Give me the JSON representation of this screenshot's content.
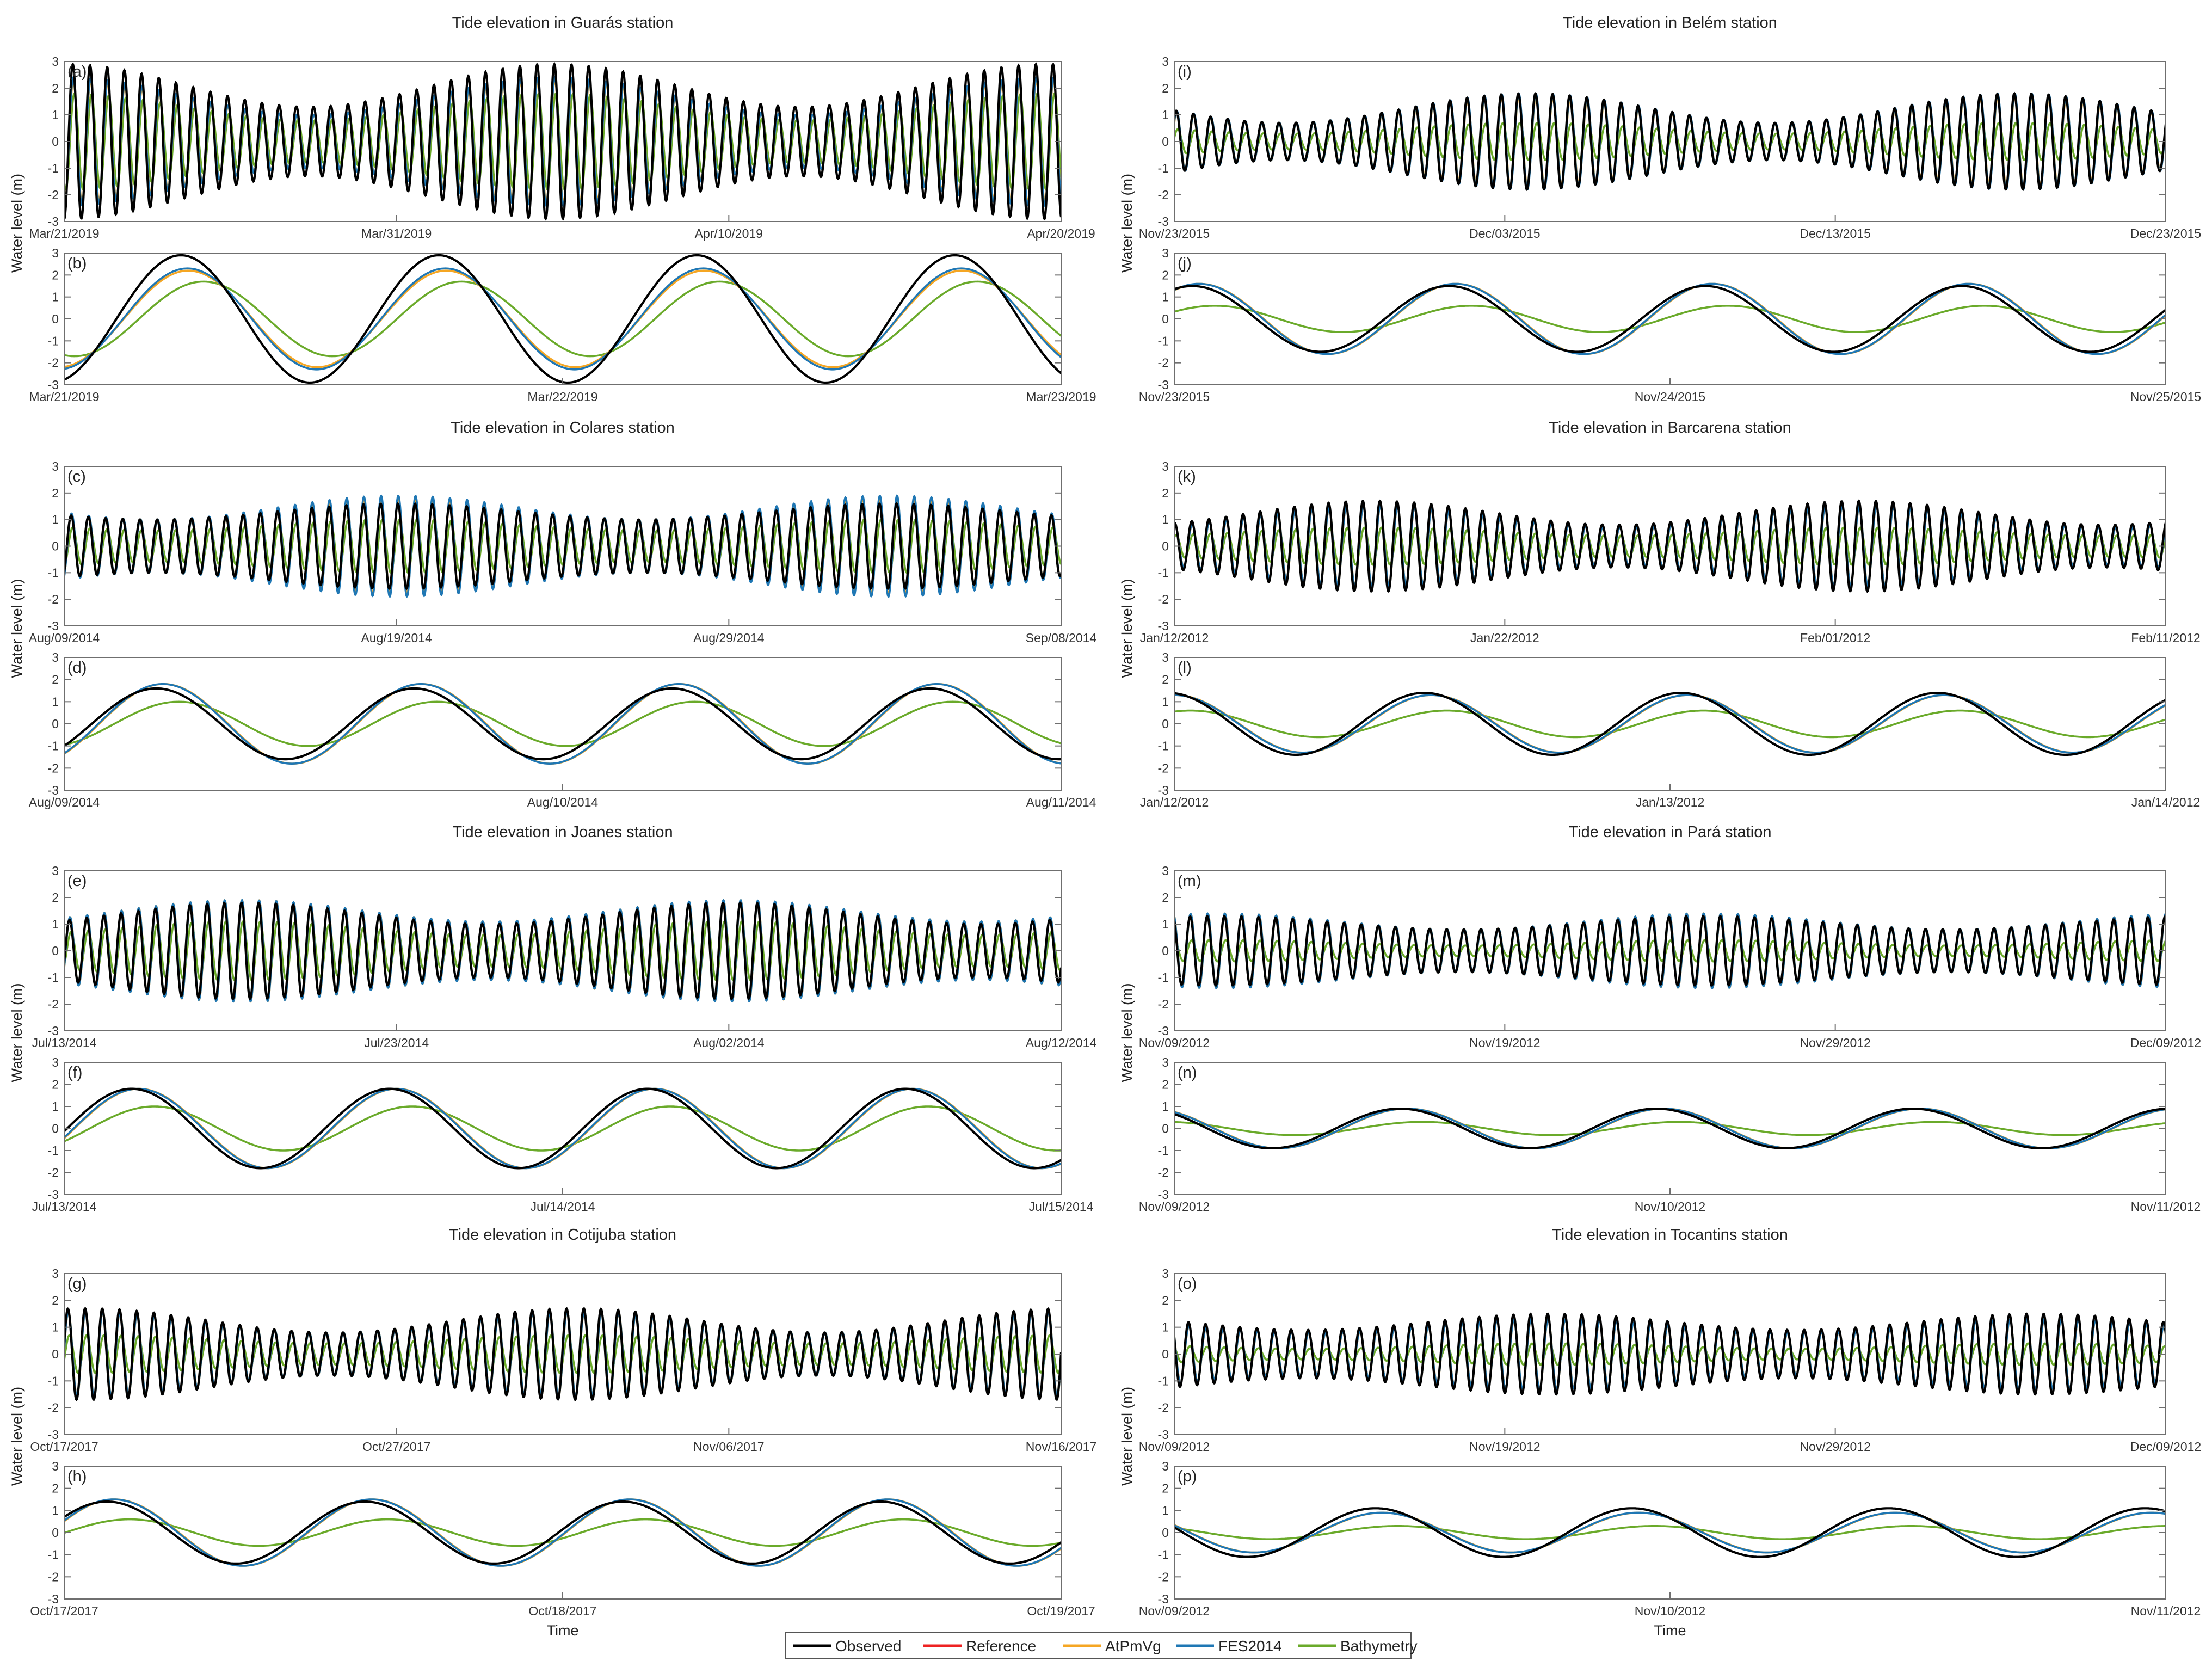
{
  "figure": {
    "xlabel": "Time",
    "ylabel": "Water level (m)"
  },
  "legend": {
    "items": [
      {
        "name": "Observed",
        "color": "#000000"
      },
      {
        "name": "Reference",
        "color": "#ee2222"
      },
      {
        "name": "AtPmVg",
        "color": "#f5a623"
      },
      {
        "name": "FES2014",
        "color": "#1f77b4"
      },
      {
        "name": "Bathymetry",
        "color": "#6aaa2a"
      }
    ]
  },
  "chart_data": [
    {
      "type": "line",
      "station": "Guarás",
      "title": "Tide elevation in Guarás station",
      "panel": "(a)",
      "ylim": [
        -3,
        3
      ],
      "yticks": [
        3,
        2,
        1,
        0,
        -1,
        -2,
        -3
      ],
      "xticks": [
        "Mar/21/2019",
        "Mar/31/2019",
        "Apr/10/2019",
        "Apr/20/2019"
      ],
      "days": 30,
      "series": [
        {
          "name": "Observed",
          "amplitude_range": [
            1.3,
            2.9
          ]
        },
        {
          "name": "FES2014",
          "amplitude_range": [
            1.0,
            2.4
          ]
        },
        {
          "name": "AtPmVg",
          "amplitude_range": [
            1.0,
            2.3
          ]
        },
        {
          "name": "Bathymetry",
          "amplitude_range": [
            0.8,
            1.8
          ]
        }
      ]
    },
    {
      "type": "line",
      "station": "Guarás",
      "panel": "(b)",
      "ylim": [
        -3,
        3
      ],
      "yticks": [
        3,
        2,
        1,
        0,
        -1,
        -2,
        -3
      ],
      "xticks": [
        "Mar/21/2019",
        "Mar/22/2019",
        "Mar/23/2019"
      ],
      "days": 2,
      "series": [
        {
          "name": "Observed",
          "amplitude": 2.9
        },
        {
          "name": "FES2014",
          "amplitude": 2.3
        },
        {
          "name": "AtPmVg",
          "amplitude": 2.2
        },
        {
          "name": "Bathymetry",
          "amplitude": 1.7
        }
      ]
    },
    {
      "type": "line",
      "station": "Colares",
      "title": "Tide elevation in Colares station",
      "panel": "(c)",
      "ylim": [
        -3,
        3
      ],
      "yticks": [
        3,
        2,
        1,
        0,
        -1,
        -2,
        -3
      ],
      "xticks": [
        "Aug/09/2014",
        "Aug/19/2014",
        "Aug/29/2014",
        "Sep/08/2014"
      ],
      "days": 30,
      "series": [
        {
          "name": "Observed",
          "amplitude_range": [
            1.0,
            1.6
          ]
        },
        {
          "name": "FES2014",
          "amplitude_range": [
            1.0,
            1.9
          ]
        },
        {
          "name": "AtPmVg",
          "amplitude_range": [
            1.0,
            1.8
          ]
        },
        {
          "name": "Bathymetry",
          "amplitude_range": [
            0.6,
            1.0
          ]
        }
      ]
    },
    {
      "type": "line",
      "station": "Colares",
      "panel": "(d)",
      "ylim": [
        -3,
        3
      ],
      "yticks": [
        3,
        2,
        1,
        0,
        -1,
        -2,
        -3
      ],
      "xticks": [
        "Aug/09/2014",
        "Aug/10/2014",
        "Aug/11/2014"
      ],
      "days": 2,
      "series": [
        {
          "name": "Observed",
          "amplitude": 1.6
        },
        {
          "name": "FES2014",
          "amplitude": 1.8
        },
        {
          "name": "AtPmVg",
          "amplitude": 1.8
        },
        {
          "name": "Bathymetry",
          "amplitude": 1.0
        }
      ]
    },
    {
      "type": "line",
      "station": "Joanes",
      "title": "Tide elevation in Joanes station",
      "panel": "(e)",
      "ylim": [
        -3,
        3
      ],
      "yticks": [
        3,
        2,
        1,
        0,
        -1,
        -2,
        -3
      ],
      "xticks": [
        "Jul/13/2014",
        "Jul/23/2014",
        "Aug/02/2014",
        "Aug/12/2014"
      ],
      "days": 30,
      "series": [
        {
          "name": "Observed",
          "amplitude_range": [
            1.0,
            1.8
          ]
        },
        {
          "name": "FES2014",
          "amplitude_range": [
            1.1,
            1.9
          ]
        },
        {
          "name": "AtPmVg",
          "amplitude_range": [
            1.1,
            1.9
          ]
        },
        {
          "name": "Bathymetry",
          "amplitude_range": [
            0.6,
            1.1
          ]
        }
      ]
    },
    {
      "type": "line",
      "station": "Joanes",
      "panel": "(f)",
      "ylim": [
        -3,
        3
      ],
      "yticks": [
        3,
        2,
        1,
        0,
        -1,
        -2,
        -3
      ],
      "xticks": [
        "Jul/13/2014",
        "Jul/14/2014",
        "Jul/15/2014"
      ],
      "days": 2,
      "series": [
        {
          "name": "Observed",
          "amplitude": 1.8
        },
        {
          "name": "FES2014",
          "amplitude": 1.8
        },
        {
          "name": "AtPmVg",
          "amplitude": 1.8
        },
        {
          "name": "Bathymetry",
          "amplitude": 1.0
        }
      ]
    },
    {
      "type": "line",
      "station": "Cotijuba",
      "title": "Tide elevation in Cotijuba station",
      "panel": "(g)",
      "ylim": [
        -3,
        3
      ],
      "yticks": [
        3,
        2,
        1,
        0,
        -1,
        -2,
        -3
      ],
      "xticks": [
        "Oct/17/2017",
        "Oct/27/2017",
        "Nov/06/2017",
        "Nov/16/2017"
      ],
      "days": 30,
      "series": [
        {
          "name": "Observed",
          "amplitude_range": [
            0.8,
            1.7
          ]
        },
        {
          "name": "FES2014",
          "amplitude_range": [
            0.8,
            1.6
          ]
        },
        {
          "name": "AtPmVg",
          "amplitude_range": [
            0.8,
            1.6
          ]
        },
        {
          "name": "Bathymetry",
          "amplitude_range": [
            0.4,
            0.7
          ]
        }
      ]
    },
    {
      "type": "line",
      "station": "Cotijuba",
      "panel": "(h)",
      "ylim": [
        -3,
        3
      ],
      "yticks": [
        3,
        2,
        1,
        0,
        -1,
        -2,
        -3
      ],
      "xticks": [
        "Oct/17/2017",
        "Oct/18/2017",
        "Oct/19/2017"
      ],
      "days": 2,
      "series": [
        {
          "name": "Observed",
          "amplitude": 1.4
        },
        {
          "name": "FES2014",
          "amplitude": 1.5
        },
        {
          "name": "AtPmVg",
          "amplitude": 1.5
        },
        {
          "name": "Bathymetry",
          "amplitude": 0.6
        }
      ]
    },
    {
      "type": "line",
      "station": "Belém",
      "title": "Tide elevation in Belém station",
      "panel": "(i)",
      "ylim": [
        -3,
        3
      ],
      "yticks": [
        3,
        2,
        1,
        0,
        -1,
        -2,
        -3
      ],
      "xticks": [
        "Nov/23/2015",
        "Dec/03/2015",
        "Dec/13/2015",
        "Dec/23/2015"
      ],
      "days": 30,
      "series": [
        {
          "name": "Observed",
          "amplitude_range": [
            0.7,
            1.8
          ]
        },
        {
          "name": "FES2014",
          "amplitude_range": [
            0.7,
            1.8
          ]
        },
        {
          "name": "AtPmVg",
          "amplitude_range": [
            0.7,
            1.7
          ]
        },
        {
          "name": "Bathymetry",
          "amplitude_range": [
            0.3,
            0.7
          ]
        }
      ]
    },
    {
      "type": "line",
      "station": "Belém",
      "panel": "(j)",
      "ylim": [
        -3,
        3
      ],
      "yticks": [
        3,
        2,
        1,
        0,
        -1,
        -2,
        -3
      ],
      "xticks": [
        "Nov/23/2015",
        "Nov/24/2015",
        "Nov/25/2015"
      ],
      "days": 2,
      "series": [
        {
          "name": "Observed",
          "amplitude": 1.5
        },
        {
          "name": "FES2014",
          "amplitude": 1.6
        },
        {
          "name": "AtPmVg",
          "amplitude": 1.6
        },
        {
          "name": "Bathymetry",
          "amplitude": 0.6
        }
      ]
    },
    {
      "type": "line",
      "station": "Barcarena",
      "title": "Tide elevation in Barcarena station",
      "panel": "(k)",
      "ylim": [
        -3,
        3
      ],
      "yticks": [
        3,
        2,
        1,
        0,
        -1,
        -2,
        -3
      ],
      "xticks": [
        "Jan/12/2012",
        "Jan/22/2012",
        "Feb/01/2012",
        "Feb/11/2012"
      ],
      "days": 30,
      "series": [
        {
          "name": "Observed",
          "amplitude_range": [
            0.8,
            1.7
          ]
        },
        {
          "name": "FES2014",
          "amplitude_range": [
            0.7,
            1.5
          ]
        },
        {
          "name": "AtPmVg",
          "amplitude_range": [
            0.7,
            1.5
          ]
        },
        {
          "name": "Bathymetry",
          "amplitude_range": [
            0.4,
            0.7
          ]
        }
      ]
    },
    {
      "type": "line",
      "station": "Barcarena",
      "panel": "(l)",
      "ylim": [
        -3,
        3
      ],
      "yticks": [
        3,
        2,
        1,
        0,
        -1,
        -2,
        -3
      ],
      "xticks": [
        "Jan/12/2012",
        "Jan/13/2012",
        "Jan/14/2012"
      ],
      "days": 2,
      "series": [
        {
          "name": "Observed",
          "amplitude": 1.4
        },
        {
          "name": "FES2014",
          "amplitude": 1.3
        },
        {
          "name": "AtPmVg",
          "amplitude": 1.3
        },
        {
          "name": "Bathymetry",
          "amplitude": 0.6
        }
      ]
    },
    {
      "type": "line",
      "station": "Pará",
      "title": "Tide elevation in Pará station",
      "panel": "(m)",
      "ylim": [
        -3,
        3
      ],
      "yticks": [
        3,
        2,
        1,
        0,
        -1,
        -2,
        -3
      ],
      "xticks": [
        "Nov/09/2012",
        "Nov/19/2012",
        "Nov/29/2012",
        "Dec/09/2012"
      ],
      "days": 30,
      "series": [
        {
          "name": "Observed",
          "amplitude_range": [
            0.8,
            1.3
          ]
        },
        {
          "name": "FES2014",
          "amplitude_range": [
            0.8,
            1.4
          ]
        },
        {
          "name": "AtPmVg",
          "amplitude_range": [
            0.8,
            1.4
          ]
        },
        {
          "name": "Bathymetry",
          "amplitude_range": [
            0.2,
            0.4
          ]
        }
      ]
    },
    {
      "type": "line",
      "station": "Pará",
      "panel": "(n)",
      "ylim": [
        -3,
        3
      ],
      "yticks": [
        3,
        2,
        1,
        0,
        -1,
        -2,
        -3
      ],
      "xticks": [
        "Nov/09/2012",
        "Nov/10/2012",
        "Nov/11/2012"
      ],
      "days": 2,
      "series": [
        {
          "name": "Observed",
          "amplitude": 0.9
        },
        {
          "name": "FES2014",
          "amplitude": 0.9
        },
        {
          "name": "AtPmVg",
          "amplitude": 0.9
        },
        {
          "name": "Bathymetry",
          "amplitude": 0.3
        }
      ]
    },
    {
      "type": "line",
      "station": "Tocantins",
      "title": "Tide elevation in Tocantins station",
      "panel": "(o)",
      "ylim": [
        -3,
        3
      ],
      "yticks": [
        3,
        2,
        1,
        0,
        -1,
        -2,
        -3
      ],
      "xticks": [
        "Nov/09/2012",
        "Nov/19/2012",
        "Nov/29/2012",
        "Dec/09/2012"
      ],
      "days": 30,
      "series": [
        {
          "name": "Observed",
          "amplitude_range": [
            0.9,
            1.5
          ]
        },
        {
          "name": "FES2014",
          "amplitude_range": [
            0.8,
            1.3
          ]
        },
        {
          "name": "AtPmVg",
          "amplitude_range": [
            0.8,
            1.3
          ]
        },
        {
          "name": "Bathymetry",
          "amplitude_range": [
            0.2,
            0.4
          ]
        }
      ]
    },
    {
      "type": "line",
      "station": "Tocantins",
      "panel": "(p)",
      "ylim": [
        -3,
        3
      ],
      "yticks": [
        3,
        2,
        1,
        0,
        -1,
        -2,
        -3
      ],
      "xticks": [
        "Nov/09/2012",
        "Nov/10/2012",
        "Nov/11/2012"
      ],
      "days": 2,
      "series": [
        {
          "name": "Observed",
          "amplitude": 1.1
        },
        {
          "name": "FES2014",
          "amplitude": 0.9
        },
        {
          "name": "AtPmVg",
          "amplitude": 0.9
        },
        {
          "name": "Bathymetry",
          "amplitude": 0.3
        }
      ]
    }
  ]
}
